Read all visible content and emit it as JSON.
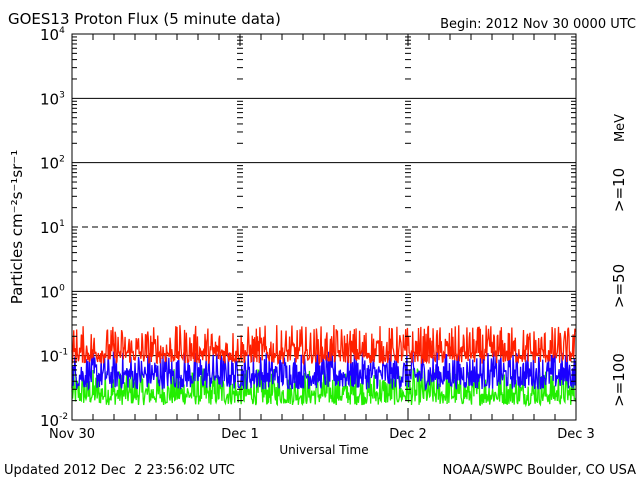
{
  "chart_data": {
    "type": "line",
    "title": "GOES13 Proton Flux (5 minute data)",
    "begin_label": "Begin: 2012 Nov 30 0000 UTC",
    "xlabel": "Universal Time",
    "ylabel": "Particles cm⁻²s⁻¹sr⁻¹",
    "yscale": "log",
    "ylim": [
      0.01,
      10000
    ],
    "y_ticks": [
      {
        "base": "10",
        "exp": "4",
        "value": 10000
      },
      {
        "base": "10",
        "exp": "3",
        "value": 1000
      },
      {
        "base": "10",
        "exp": "2",
        "value": 100
      },
      {
        "base": "10",
        "exp": "1",
        "value": 10
      },
      {
        "base": "10",
        "exp": "0",
        "value": 1
      },
      {
        "base": "10",
        "exp": "-1",
        "value": 0.1
      },
      {
        "base": "10",
        "exp": "-2",
        "value": 0.01
      }
    ],
    "x_ticks": [
      "Nov 30",
      "Dec 1",
      "Dec 2",
      "Dec 3"
    ],
    "xlim_days": [
      0,
      3
    ],
    "interval_minutes": 5,
    "series": [
      {
        "name": ">=10",
        "color": "#ff2000",
        "typical_min": 0.075,
        "typical_max": 0.3,
        "median": 0.11
      },
      {
        "name": ">=50",
        "color": "#1a00ff",
        "typical_min": 0.03,
        "typical_max": 0.12,
        "median": 0.05
      },
      {
        "name": ">=100",
        "color": "#22ee00",
        "typical_min": 0.017,
        "typical_max": 0.065,
        "median": 0.025
      }
    ],
    "units_label": "MeV",
    "grid": "decade lines (10¹ dashed)",
    "legend": "right"
  },
  "footer": {
    "updated": "Updated 2012 Dec  2 23:56:02 UTC",
    "source": "NOAA/SWPC Boulder, CO USA"
  }
}
